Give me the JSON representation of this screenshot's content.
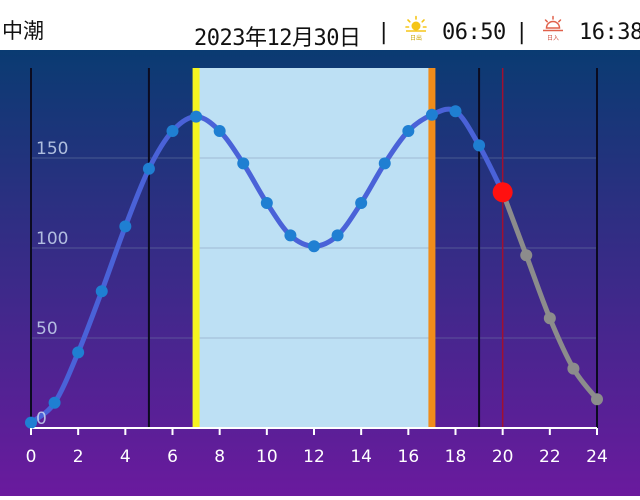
{
  "header": {
    "tide_type": "中潮",
    "date": "2023年12月30日",
    "separator": "|",
    "sunrise": {
      "icon": "sunrise-icon",
      "label": "日出",
      "time": "06:50"
    },
    "sunset": {
      "icon": "sunset-icon",
      "label": "日入",
      "time": "16:38"
    }
  },
  "colors": {
    "bg_top": "#0a3b72",
    "bg_bottom": "#6a1a9e",
    "daylight": "#bde0f4",
    "sunrise_line": "#f5f520",
    "sunset_line": "#f08c1a",
    "past_line": "#4a62d8",
    "past_marker": "#1f7fd2",
    "future_line": "#8c8c8c",
    "current_marker": "#ff1010",
    "axis": "#ffffff"
  },
  "chart_data": {
    "type": "line",
    "x": [
      0,
      1,
      2,
      3,
      4,
      5,
      6,
      7,
      8,
      9,
      10,
      11,
      12,
      13,
      14,
      15,
      16,
      17,
      18,
      19,
      20,
      21,
      22,
      23,
      24
    ],
    "y": [
      3,
      14,
      42,
      76,
      112,
      144,
      165,
      173,
      165,
      147,
      125,
      107,
      101,
      107,
      125,
      147,
      165,
      174,
      176,
      157,
      131,
      96,
      61,
      33,
      16
    ],
    "current_x": 20,
    "current_y": 131,
    "sunrise_x": 7,
    "sunset_x": 17,
    "xlim": [
      0,
      24
    ],
    "ylim": [
      0,
      200
    ],
    "x_ticks": [
      0,
      2,
      4,
      6,
      8,
      10,
      12,
      14,
      16,
      18,
      20,
      22,
      24
    ],
    "y_ticks": [
      0,
      50,
      100,
      150
    ],
    "vertical_gridlines_x": [
      5,
      19,
      24
    ],
    "horizontal_gridlines_y": [
      50,
      100,
      150
    ],
    "xlabel": "",
    "ylabel": ""
  }
}
